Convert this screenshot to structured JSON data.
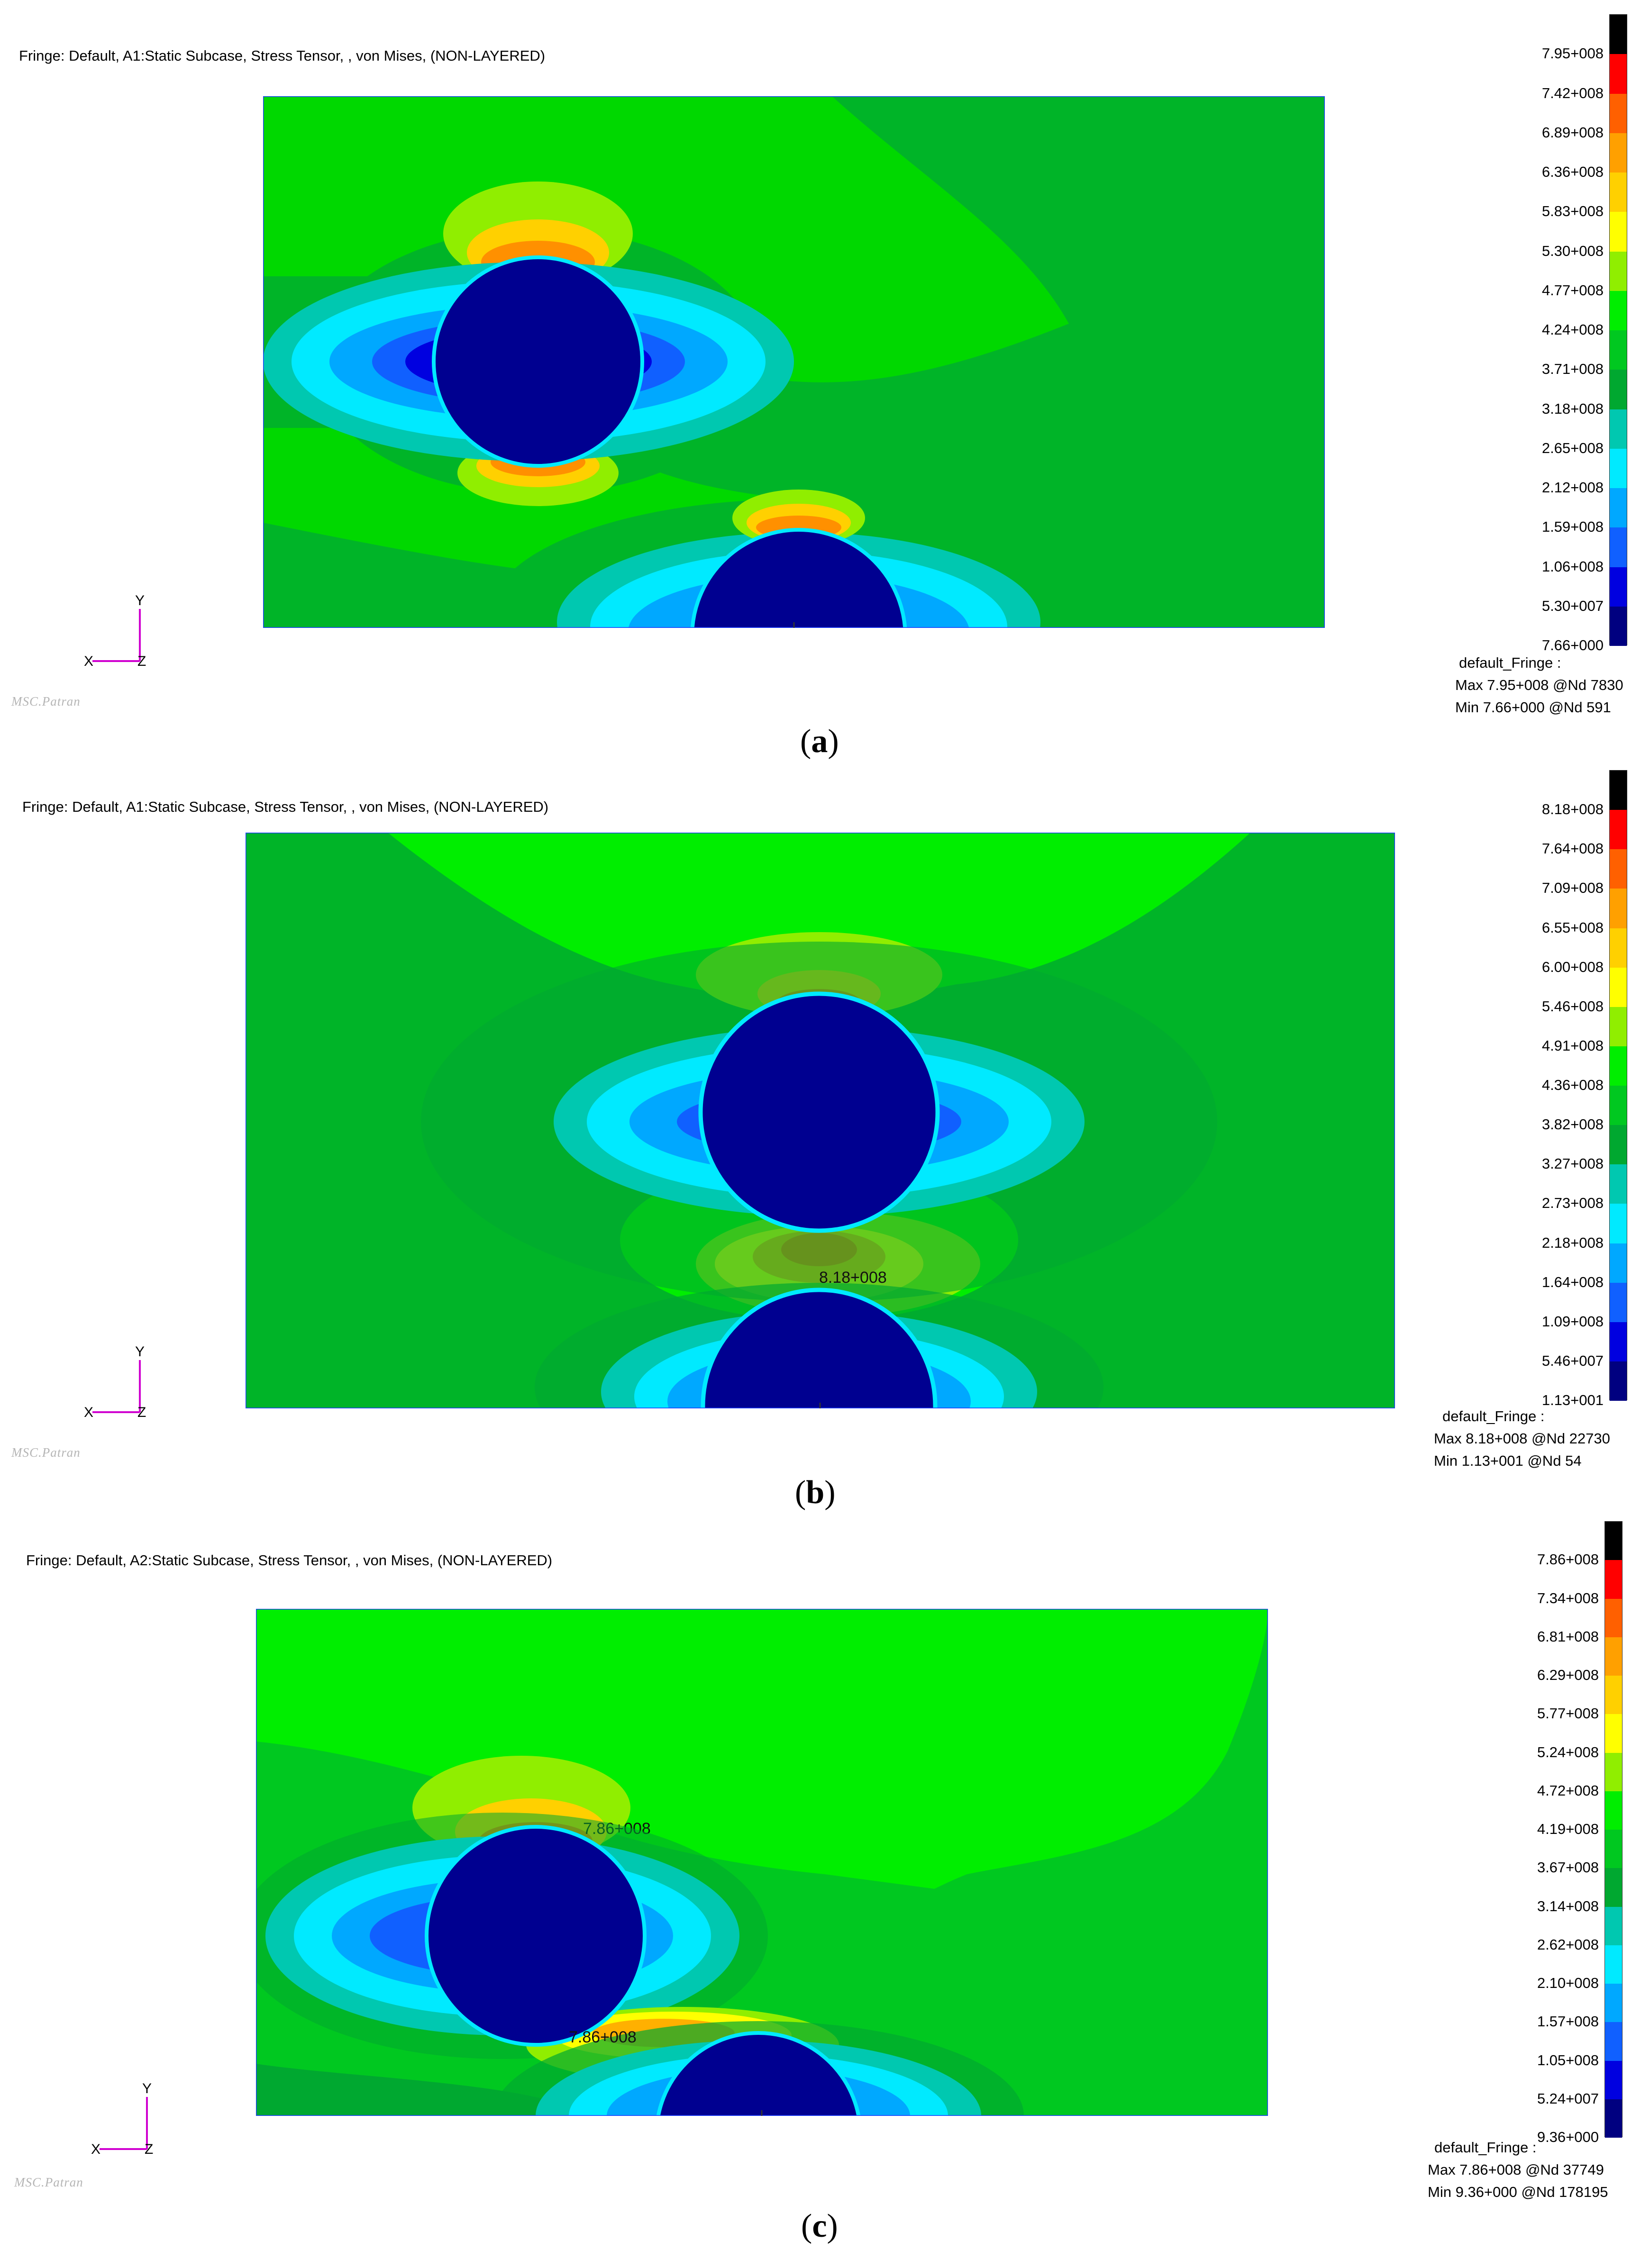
{
  "colors": [
    "#000080",
    "#0000e0",
    "#1060ff",
    "#00a8ff",
    "#00eaff",
    "#00c8b0",
    "#00a830",
    "#00c820",
    "#00ee00",
    "#90ee00",
    "#ffff00",
    "#ffd000",
    "#ffa000",
    "#ff6000",
    "#ff0000",
    "#000000"
  ],
  "panels": [
    {
      "title": "Fringe: Default, A1:Static Subcase, Stress Tensor, , von Mises, (NON-LAYERED)",
      "ticks": [
        "7.95+008",
        "7.42+008",
        "6.89+008",
        "6.36+008",
        "5.83+008",
        "5.30+008",
        "4.77+008",
        "4.24+008",
        "3.71+008",
        "3.18+008",
        "2.65+008",
        "2.12+008",
        "1.59+008",
        "1.06+008",
        "5.30+007",
        "7.66+000"
      ],
      "stats_title": "default_Fringe :",
      "stats_max": "Max 7.95+008 @Nd 7830",
      "stats_min": "Min 7.66+000 @Nd 591",
      "axis_y": "Y",
      "axis_x": "X",
      "axis_z": "Z",
      "logo": "MSC.Patran",
      "caption_open": "(",
      "caption_letter": "a",
      "caption_close": ")",
      "annotations": []
    },
    {
      "title": "Fringe: Default, A1:Static Subcase, Stress Tensor, , von Mises, (NON-LAYERED)",
      "ticks": [
        "8.18+008",
        "7.64+008",
        "7.09+008",
        "6.55+008",
        "6.00+008",
        "5.46+008",
        "4.91+008",
        "4.36+008",
        "3.82+008",
        "3.27+008",
        "2.73+008",
        "2.18+008",
        "1.64+008",
        "1.09+008",
        "5.46+007",
        "1.13+001"
      ],
      "stats_title": "default_Fringe :",
      "stats_max": "Max 8.18+008 @Nd 22730",
      "stats_min": "Min 1.13+001 @Nd 54",
      "axis_y": "Y",
      "axis_x": "X",
      "axis_z": "Z",
      "logo": "MSC.Patran",
      "caption_open": "(",
      "caption_letter": "b",
      "caption_close": ")",
      "annotations": [
        "8.18+008"
      ]
    },
    {
      "title": "Fringe: Default, A2:Static Subcase, Stress Tensor, , von Mises, (NON-LAYERED)",
      "ticks": [
        "7.86+008",
        "7.34+008",
        "6.81+008",
        "6.29+008",
        "5.77+008",
        "5.24+008",
        "4.72+008",
        "4.19+008",
        "3.67+008",
        "3.14+008",
        "2.62+008",
        "2.10+008",
        "1.57+008",
        "1.05+008",
        "5.24+007",
        "9.36+000"
      ],
      "stats_title": "default_Fringe :",
      "stats_max": "Max 7.86+008 @Nd 37749",
      "stats_min": "Min 9.36+000 @Nd 178195",
      "axis_y": "Y",
      "axis_x": "X",
      "axis_z": "Z",
      "logo": "MSC.Patran",
      "caption_open": "(",
      "caption_letter": "c",
      "caption_close": ")",
      "annotations": [
        "7.86+008",
        "7.86+008"
      ]
    }
  ]
}
